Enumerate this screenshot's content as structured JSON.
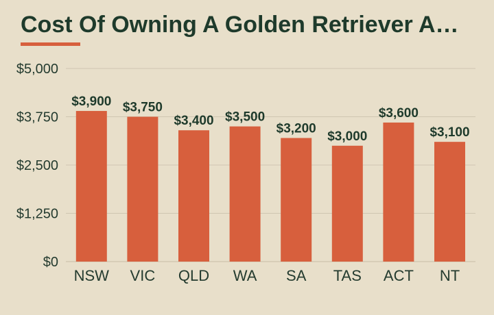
{
  "chart_data": {
    "type": "bar",
    "title": "Cost Of Owning A Golden Retriever A…",
    "categories": [
      "NSW",
      "VIC",
      "QLD",
      "WA",
      "SA",
      "TAS",
      "ACT",
      "NT"
    ],
    "values": [
      3900,
      3750,
      3400,
      3500,
      3200,
      3000,
      3600,
      3100
    ],
    "value_labels": [
      "$3,900",
      "$3,750",
      "$3,400",
      "$3,500",
      "$3,200",
      "$3,000",
      "$3,600",
      "$3,100"
    ],
    "yticks": [
      0,
      1250,
      2500,
      3750,
      5000
    ],
    "ytick_labels": [
      "$0",
      "$1,250",
      "$2,500",
      "$3,750",
      "$5,000"
    ],
    "ylim": [
      0,
      5000
    ],
    "xlabel": "",
    "ylabel": "",
    "grid": true,
    "bar_color": "#d75f3d",
    "background_color": "#e8dfca",
    "text_color": "#1e3a2b"
  }
}
